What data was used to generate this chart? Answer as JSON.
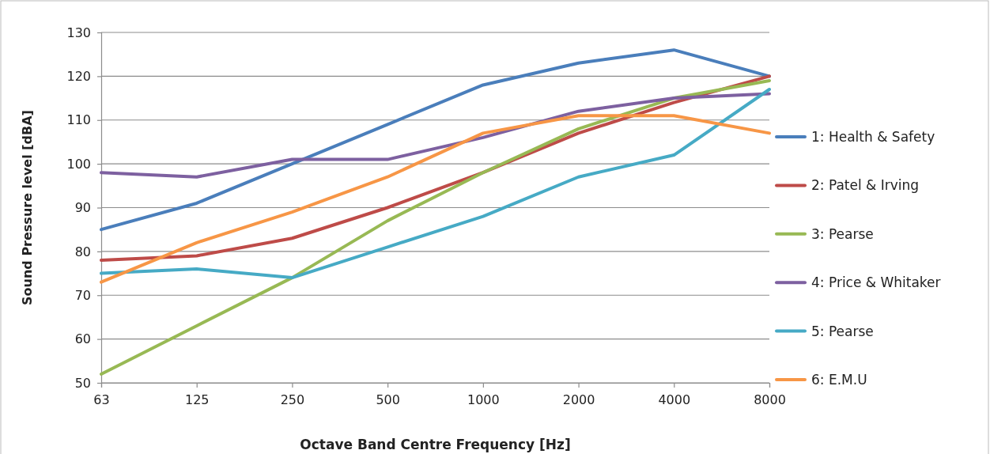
{
  "chart_data": {
    "type": "line",
    "xlabel": "Octave Band Centre Frequency [Hz]",
    "ylabel": "Sound Pressure level [dBA]",
    "categories": [
      "63",
      "125",
      "250",
      "500",
      "1000",
      "2000",
      "4000",
      "8000"
    ],
    "ylim": [
      50,
      130
    ],
    "yticks": [
      50,
      60,
      70,
      80,
      90,
      100,
      110,
      120,
      130
    ],
    "grid": "y",
    "legend": "right",
    "marker": "none",
    "line_style": "solid",
    "series": [
      {
        "name": "1: Health & Safety",
        "color": "#4a7ebb",
        "values": [
          85,
          91,
          100,
          109,
          118,
          123,
          126,
          120
        ]
      },
      {
        "name": "2: Patel & Irving",
        "color": "#be4b48",
        "values": [
          78,
          79,
          83,
          90,
          98,
          107,
          114,
          120
        ]
      },
      {
        "name": "3: Pearse",
        "color": "#98b954",
        "values": [
          52,
          63,
          74,
          87,
          98,
          108,
          115,
          119
        ]
      },
      {
        "name": "4: Price & Whitaker",
        "color": "#7d60a0",
        "values": [
          98,
          97,
          101,
          101,
          106,
          112,
          115,
          116
        ]
      },
      {
        "name": "5: Pearse",
        "color": "#46aac5",
        "values": [
          75,
          76,
          74,
          81,
          88,
          97,
          102,
          117
        ]
      },
      {
        "name": "6: E.M.U",
        "color": "#f79646",
        "values": [
          73,
          82,
          89,
          97,
          107,
          111,
          111,
          107
        ]
      }
    ]
  }
}
